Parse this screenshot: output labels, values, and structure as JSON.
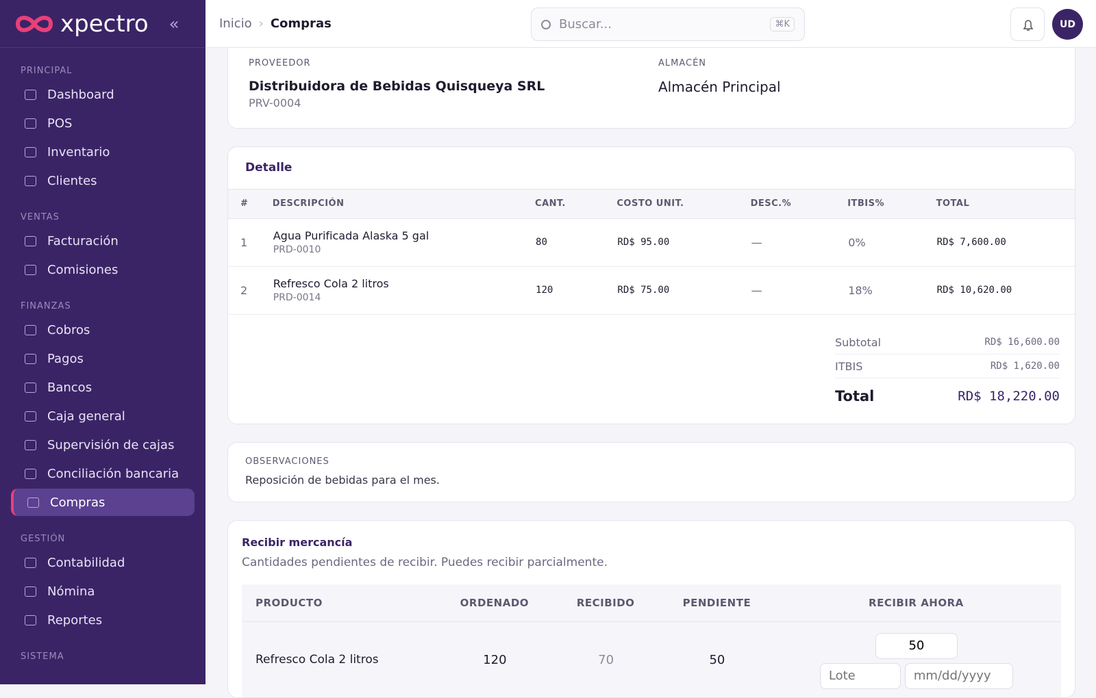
{
  "sidebar": {
    "brand": "xpectro",
    "sections": [
      {
        "title": "PRINCIPAL",
        "items": [
          "Dashboard",
          "POS",
          "Inventario",
          "Clientes"
        ]
      },
      {
        "title": "VENTAS",
        "items": [
          "Facturación",
          "Comisiones"
        ]
      },
      {
        "title": "FINANZAS",
        "items": [
          "Cobros",
          "Pagos",
          "Bancos",
          "Caja general",
          "Supervisión de cajas",
          "Conciliación bancaria",
          "Compras"
        ]
      },
      {
        "title": "GESTIÓN",
        "items": [
          "Contabilidad",
          "Nómina",
          "Reportes"
        ]
      },
      {
        "title": "SISTEMA",
        "items": []
      }
    ]
  },
  "header": {
    "breadcrumb": [
      "Inicio",
      "Compras"
    ],
    "search_placeholder": "Buscar...",
    "shortcut": "⌘K",
    "avatar": "UD"
  },
  "supplier": {
    "supplier_label": "PROVEEDOR",
    "supplier_name": "Distribuidora de Bebidas Quisqueya SRL",
    "supplier_code": "PRV-0004",
    "warehouse_label": "ALMACÉN",
    "warehouse_name": "Almacén Principal"
  },
  "detail": {
    "title": "Detalle",
    "columns": [
      "#",
      "DESCRIPCIÓN",
      "CANT.",
      "COSTO UNIT.",
      "DESC.%",
      "ITBIS%",
      "TOTAL"
    ],
    "rows": [
      [
        "1",
        "Agua Purificada Alaska 5 gal",
        "PRD-0010",
        "80",
        "RD$ 95.00",
        "—",
        "0%",
        "RD$ 7,600.00"
      ],
      [
        "2",
        "Refresco Cola 2 litros",
        "PRD-0014",
        "120",
        "RD$ 75.00",
        "—",
        "18%",
        "RD$ 10,620.00"
      ]
    ],
    "totals": [
      [
        "Subtotal",
        "RD$ 16,600.00"
      ],
      [
        "ITBIS",
        "RD$ 1,620.00"
      ],
      [
        "Total",
        "RD$ 18,220.00"
      ]
    ]
  },
  "notes": {
    "label": "OBSERVACIONES",
    "text": "Reposición de bebidas para el mes."
  },
  "receive": {
    "title": "Recibir mercancía",
    "subtitle": "Cantidades pendientes de recibir. Puedes recibir parcialmente.",
    "columns": [
      "PRODUCTO",
      "ORDENADO",
      "RECIBIDO",
      "PENDIENTE",
      "RECIBIR AHORA"
    ],
    "rows": [
      {
        "product": "Refresco Cola 2 litros",
        "ordered": "120",
        "received": "70",
        "pending": "50",
        "receive_now": "50",
        "lot_placeholder": "Lote",
        "date_placeholder": "mm/dd/yyyy"
      }
    ]
  }
}
